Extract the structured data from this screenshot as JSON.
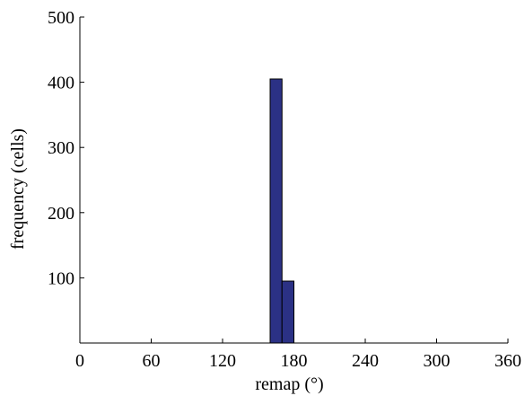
{
  "chart_data": {
    "type": "bar",
    "title": "",
    "xlabel": "remap (°)",
    "ylabel": "frequency (cells)",
    "xlim": [
      0,
      360
    ],
    "ylim": [
      0,
      500
    ],
    "bin_width": 10,
    "bins": [
      {
        "x_start": 160,
        "x_end": 170,
        "value": 405
      },
      {
        "x_start": 170,
        "x_end": 180,
        "value": 95
      }
    ],
    "xticks": [
      0,
      60,
      120,
      180,
      240,
      300,
      360
    ],
    "xtick_labels": [
      "0",
      "60",
      "120",
      "180",
      "240",
      "300",
      "360"
    ],
    "yticks": [
      100,
      200,
      300,
      400,
      500
    ],
    "ytick_labels": [
      "100",
      "200",
      "300",
      "400",
      "500"
    ],
    "bar_color": "#2b3185",
    "grid": false,
    "legend": "none"
  }
}
